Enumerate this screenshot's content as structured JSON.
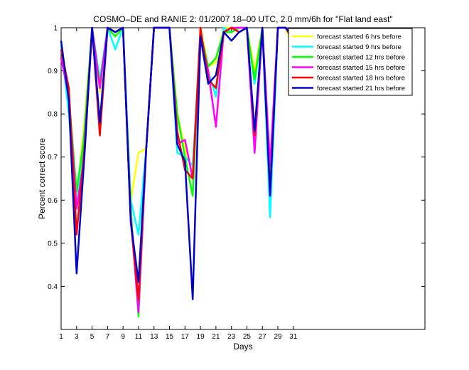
{
  "chart_data": {
    "type": "line",
    "title": "COSMO–DE and RANIE 2: 01/2007 18–00 UTC, 2.0 mm/6h for \"Flat land east\"",
    "xlabel": "Days",
    "ylabel": "Percent correct score",
    "xlim": [
      1,
      48
    ],
    "ylim": [
      0.3,
      1.0
    ],
    "xticks": [
      "1",
      "3",
      "5",
      "7",
      "9",
      "11",
      "13",
      "15",
      "17",
      "19",
      "21",
      "23",
      "25",
      "27",
      "29",
      "31"
    ],
    "yticks": [
      "0.4",
      "0.5",
      "0.6",
      "0.7",
      "0.8",
      "0.9",
      "1"
    ],
    "legend_position": "top-right",
    "x": [
      1,
      2,
      3,
      4,
      5,
      6,
      7,
      8,
      9,
      10,
      11,
      12,
      13,
      14,
      15,
      16,
      17,
      18,
      19,
      20,
      21,
      22,
      23,
      24,
      25,
      26,
      27,
      28,
      29,
      30,
      31
    ],
    "series": [
      {
        "name": "forecast started 6 hrs before",
        "color": "#ffff00",
        "values": [
          0.97,
          0.85,
          0.6,
          0.78,
          1.0,
          0.85,
          1.0,
          0.98,
          1.0,
          0.6,
          0.71,
          0.72,
          null,
          null,
          1.0,
          0.8,
          0.72,
          0.66,
          1.0,
          0.91,
          0.92,
          1.0,
          1.0,
          1.0,
          1.0,
          0.9,
          1.0,
          0.62,
          1.0,
          1.0,
          0.95
        ]
      },
      {
        "name": "forecast started 9 hrs before",
        "color": "#00ffff",
        "values": [
          0.96,
          0.8,
          0.58,
          0.76,
          1.0,
          0.88,
          1.0,
          0.95,
          1.0,
          0.6,
          0.52,
          0.72,
          1.0,
          1.0,
          1.0,
          0.71,
          0.7,
          0.68,
          0.99,
          0.9,
          0.84,
          1.0,
          0.99,
          1.0,
          1.0,
          0.87,
          1.0,
          0.56,
          1.0,
          1.0,
          0.97
        ]
      },
      {
        "name": "forecast started 12 hrs before",
        "color": "#00ff00",
        "values": [
          0.96,
          0.84,
          0.62,
          0.75,
          1.0,
          0.87,
          1.0,
          0.98,
          1.0,
          0.58,
          0.33,
          0.72,
          1.0,
          1.0,
          1.0,
          0.8,
          0.7,
          0.61,
          0.99,
          0.91,
          0.93,
          0.99,
          0.99,
          1.0,
          1.0,
          0.88,
          1.0,
          0.64,
          1.0,
          1.0,
          0.97
        ]
      },
      {
        "name": "forecast started 15 hrs before",
        "color": "#ff00ff",
        "values": [
          0.93,
          0.84,
          0.58,
          0.7,
          1.0,
          0.86,
          1.0,
          0.99,
          1.0,
          0.56,
          0.34,
          0.72,
          1.0,
          1.0,
          1.0,
          0.73,
          0.74,
          0.65,
          0.98,
          0.9,
          0.77,
          0.99,
          1.0,
          1.0,
          1.0,
          0.71,
          1.0,
          0.68,
          1.0,
          1.0,
          0.97
        ]
      },
      {
        "name": "forecast started 18 hrs before",
        "color": "#ff0000",
        "values": [
          0.95,
          0.86,
          0.52,
          0.72,
          1.0,
          0.75,
          1.0,
          0.99,
          1.0,
          0.55,
          0.37,
          0.72,
          1.0,
          1.0,
          1.0,
          0.76,
          0.67,
          0.65,
          1.0,
          0.88,
          0.86,
          0.99,
          1.0,
          0.99,
          1.0,
          0.75,
          1.0,
          0.62,
          1.0,
          1.0,
          0.97
        ]
      },
      {
        "name": "forecast started 21 hrs before",
        "color": "#0000cc",
        "values": [
          0.97,
          0.83,
          0.43,
          0.7,
          1.0,
          0.78,
          1.0,
          0.99,
          1.0,
          0.55,
          0.41,
          0.72,
          1.0,
          1.0,
          1.0,
          0.73,
          0.69,
          0.37,
          0.98,
          0.87,
          0.89,
          0.99,
          0.97,
          0.99,
          1.0,
          0.76,
          1.0,
          0.61,
          1.0,
          1.0,
          0.98
        ]
      }
    ]
  }
}
